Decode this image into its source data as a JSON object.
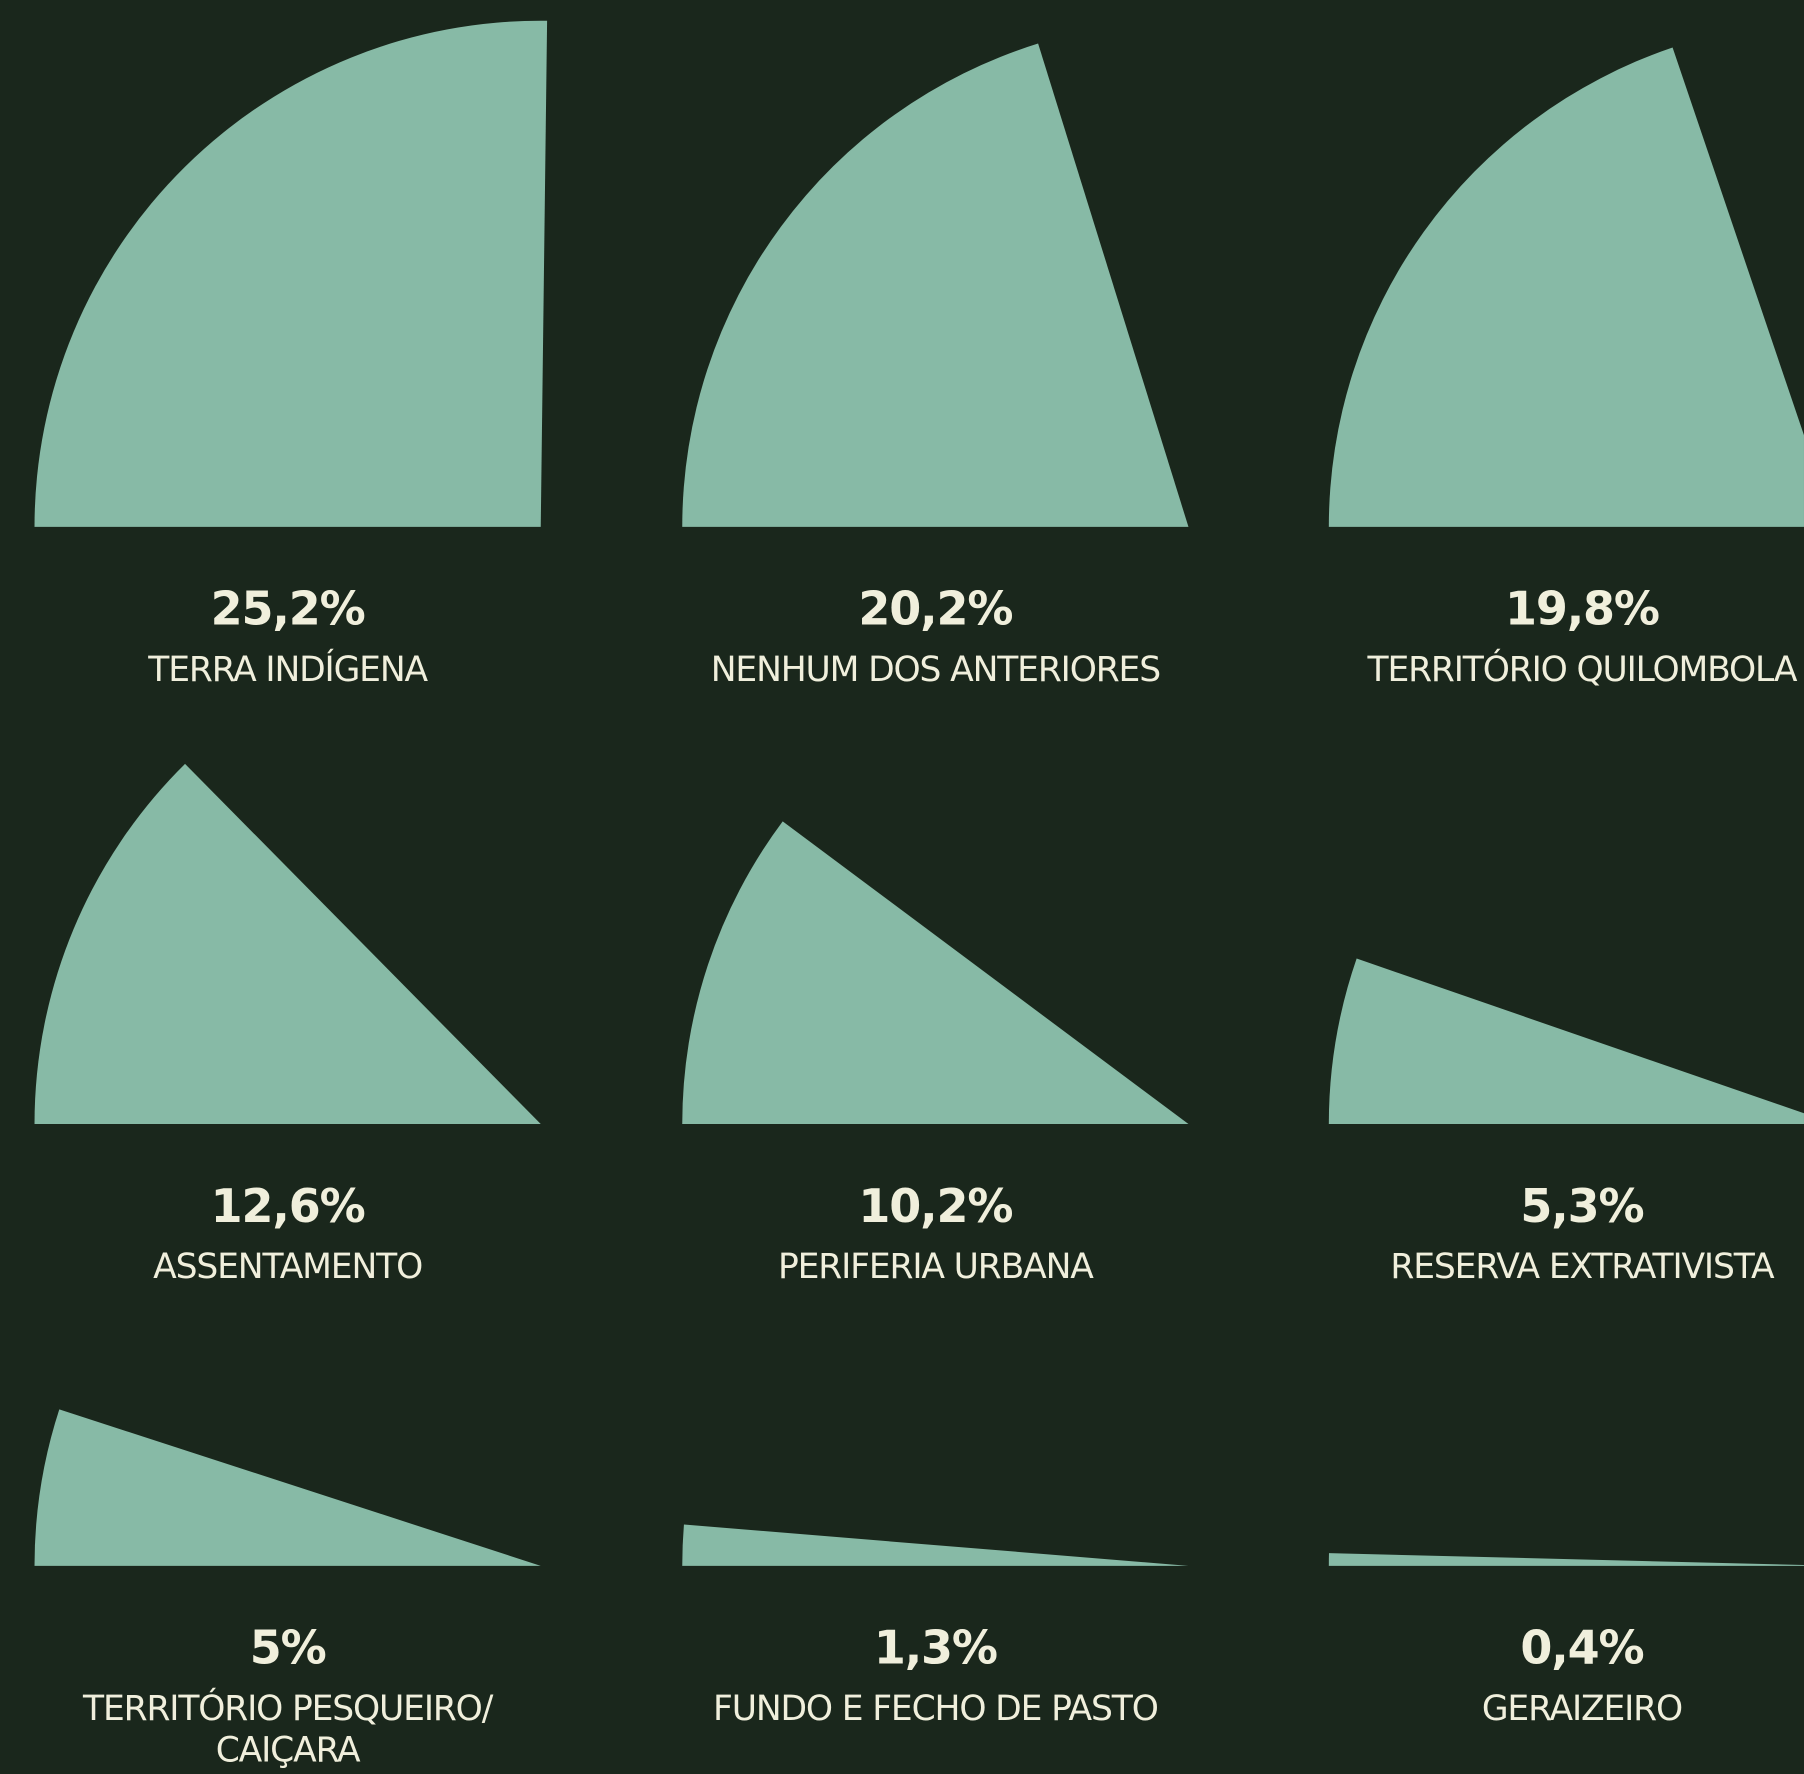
{
  "chart_data": {
    "type": "pie",
    "categories": [
      "TERRA INDÍGENA",
      "NENHUM DOS ANTERIORES",
      "TERRITÓRIO QUILOMBOLA",
      "ASSENTAMENTO",
      "PERIFERIA URBANA",
      "RESERVA EXTRATIVISTA",
      "TERRITÓRIO PESQUEIRO/ CAIÇARA",
      "FUNDO E FECHO DE PASTO",
      "GERAIZEIRO"
    ],
    "values": [
      25.2,
      20.2,
      19.8,
      12.6,
      10.2,
      5.3,
      5,
      1.3,
      0.4
    ],
    "value_labels": [
      "25,2%",
      "20,2%",
      "19,8%",
      "12,6%",
      "10,2%",
      "5,3%",
      "5%",
      "1,3%",
      "0,4%"
    ],
    "color": "#87baa6"
  }
}
